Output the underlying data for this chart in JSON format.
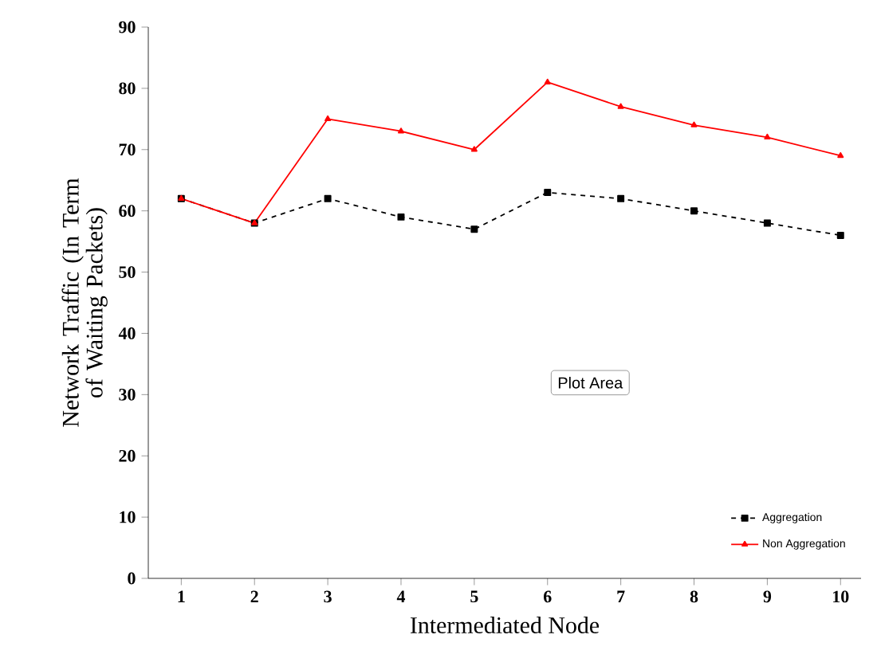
{
  "chart_data": {
    "type": "line",
    "xlabel": "Intermediated Node",
    "ylabel": "Network Traffic (In Term of Waiting Packets)",
    "categories": [
      "1",
      "2",
      "3",
      "4",
      "5",
      "6",
      "7",
      "8",
      "9",
      "10"
    ],
    "ylim": [
      0,
      90
    ],
    "yticks": [
      0,
      10,
      20,
      30,
      40,
      50,
      60,
      70,
      80,
      90
    ],
    "series": [
      {
        "name": "Non Aggregation",
        "color": "#ff0000",
        "marker": "triangle",
        "line_style": "solid",
        "values": [
          62,
          58,
          75,
          73,
          70,
          81,
          77,
          74,
          72,
          69
        ]
      },
      {
        "name": "Aggregation",
        "color": "#000000",
        "marker": "square",
        "line_style": "dashed",
        "values": [
          62,
          58,
          62,
          59,
          57,
          63,
          62,
          60,
          58,
          56
        ]
      }
    ],
    "legend": "bottom right",
    "grid": false,
    "annotations": [
      "Plot Area"
    ]
  }
}
